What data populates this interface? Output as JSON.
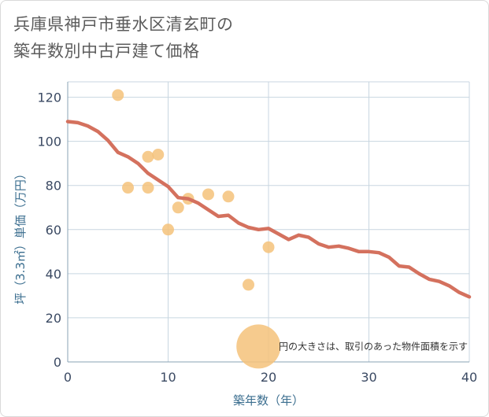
{
  "title_line1": "兵庫県神戸市垂水区清玄町の",
  "title_line2": "築年数別中古戸建て価格",
  "colors": {
    "line": "#d4715e",
    "bubble": "#f5c27a",
    "grid": "#c8d6e0",
    "axis_text": "#3b4a63",
    "axis_title": "#3b6e8f"
  },
  "chart_data": {
    "type": "scatter",
    "xlabel": "築年数（年）",
    "ylabel": "坪（3.3㎡）単価（万円）",
    "xlim": [
      0,
      40
    ],
    "ylim": [
      0,
      127
    ],
    "x_ticks": [
      0,
      10,
      20,
      30,
      40
    ],
    "y_ticks": [
      0,
      20,
      40,
      60,
      80,
      100,
      120
    ],
    "grid": true,
    "note": "円の大きさは、取引のあった物件面積を示す",
    "legend_bubble": {
      "x": 19,
      "y": 7
    },
    "scatter_points": [
      {
        "x": 5,
        "y": 121
      },
      {
        "x": 6,
        "y": 79
      },
      {
        "x": 8,
        "y": 93
      },
      {
        "x": 8,
        "y": 79
      },
      {
        "x": 9,
        "y": 94
      },
      {
        "x": 10,
        "y": 60
      },
      {
        "x": 11,
        "y": 70
      },
      {
        "x": 12,
        "y": 74
      },
      {
        "x": 14,
        "y": 76
      },
      {
        "x": 16,
        "y": 75
      },
      {
        "x": 18,
        "y": 35
      },
      {
        "x": 20,
        "y": 52
      }
    ],
    "trend_line": {
      "x": [
        0,
        1,
        2,
        3,
        4,
        5,
        6,
        7,
        8,
        9,
        10,
        11,
        12,
        13,
        14,
        15,
        16,
        17,
        18,
        19,
        20,
        21,
        22,
        23,
        24,
        25,
        26,
        27,
        28,
        29,
        30,
        31,
        32,
        33,
        34,
        35,
        36,
        37,
        38,
        39,
        40
      ],
      "y": [
        109,
        108.5,
        107,
        104.5,
        100.5,
        95,
        93,
        90,
        85.5,
        82.5,
        79.5,
        74.5,
        74,
        72,
        69,
        66,
        66.5,
        63,
        61,
        60,
        60.5,
        58,
        55.5,
        57.5,
        56.5,
        53.5,
        52,
        52.5,
        51.5,
        50,
        50,
        49.5,
        47.5,
        43.5,
        43,
        40,
        37.5,
        36.5,
        34.5,
        31.5,
        29.5
      ]
    }
  }
}
